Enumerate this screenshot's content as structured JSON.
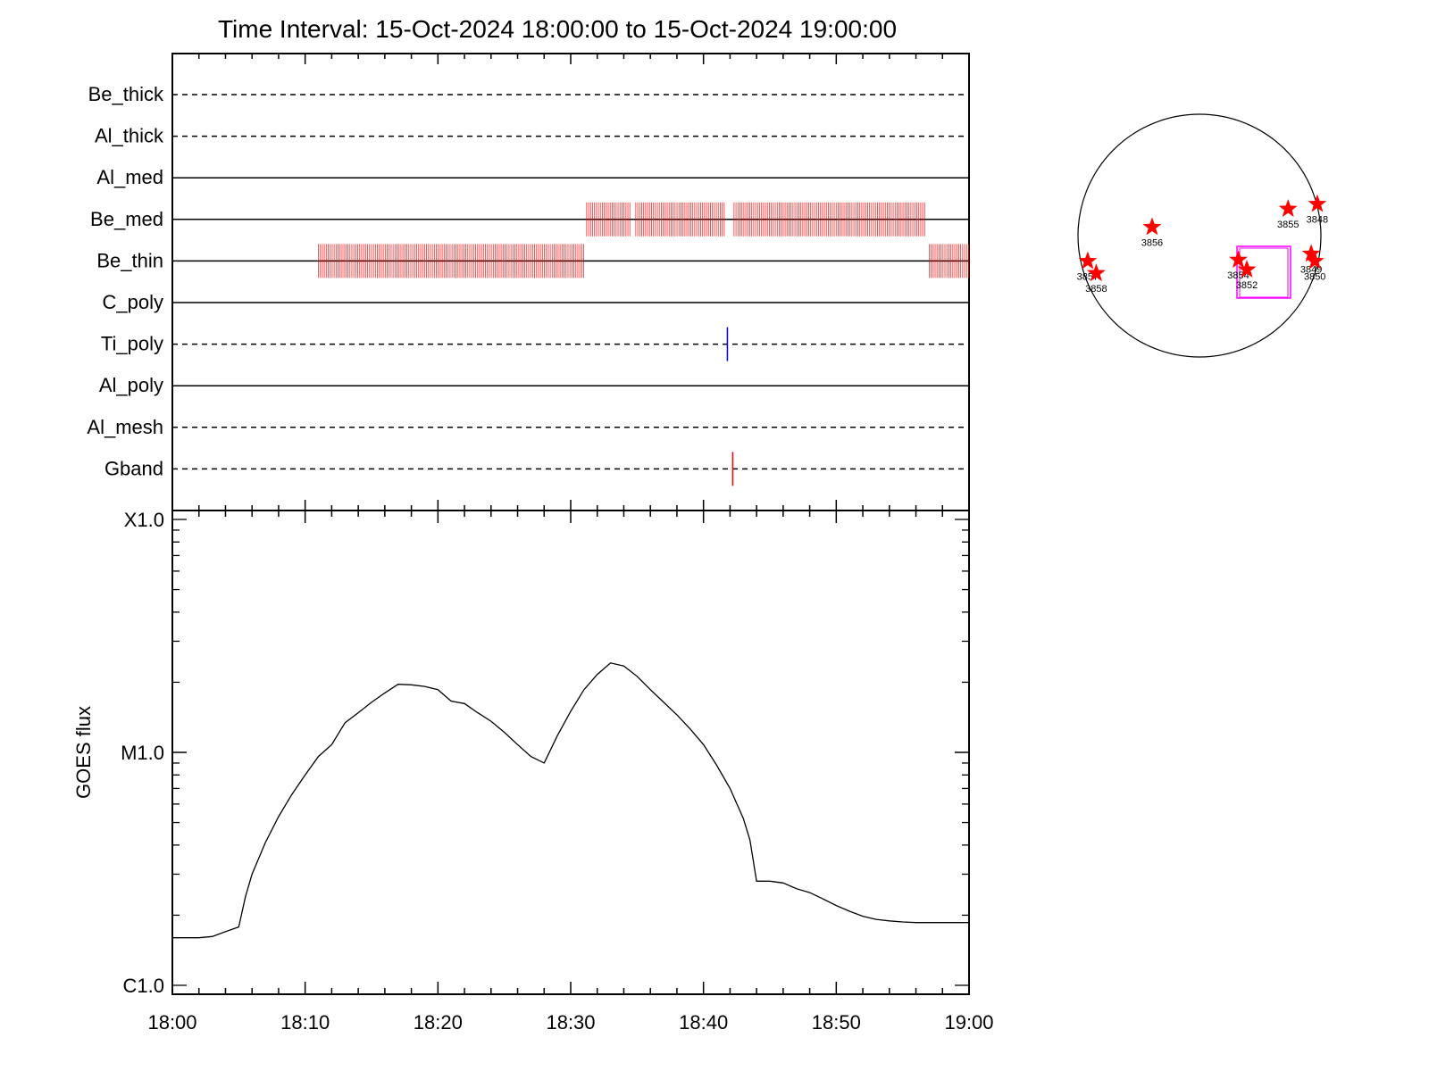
{
  "title": "Time Interval: 15-Oct-2024 18:00:00 to 15-Oct-2024 19:00:00",
  "chart_data": [
    {
      "type": "line",
      "panel": "filter-timeline",
      "xlim": [
        "18:00",
        "19:00"
      ],
      "channels": [
        {
          "name": "Be_thick",
          "line_style": "dashed"
        },
        {
          "name": "Al_thick",
          "line_style": "dashed"
        },
        {
          "name": "Al_med",
          "line_style": "solid"
        },
        {
          "name": "Be_med",
          "line_style": "solid"
        },
        {
          "name": "Be_thin",
          "line_style": "solid"
        },
        {
          "name": "C_poly",
          "line_style": "solid"
        },
        {
          "name": "Ti_poly",
          "line_style": "dashed"
        },
        {
          "name": "Al_poly",
          "line_style": "solid"
        },
        {
          "name": "Al_mesh",
          "line_style": "dashed"
        },
        {
          "name": "Gband",
          "line_style": "dashed"
        }
      ],
      "exposures": [
        {
          "channel": "Be_med",
          "color": "#ff0000",
          "intervals": [
            [
              31.2,
              34.5
            ],
            [
              34.9,
              41.7
            ],
            [
              42.3,
              56.8
            ]
          ]
        },
        {
          "channel": "Be_thin",
          "color": "#ff0000",
          "intervals": [
            [
              11.0,
              31.1
            ],
            [
              57.0,
              60.0
            ]
          ]
        },
        {
          "channel": "Ti_poly",
          "color": "#0000ff",
          "times": [
            41.8
          ]
        },
        {
          "channel": "Gband",
          "color": "#ff0000",
          "times": [
            42.2
          ]
        }
      ]
    },
    {
      "type": "line",
      "panel": "goes-flux",
      "ylabel": "GOES flux",
      "yscale": "log",
      "ylim": [
        1e-06,
        0.0001
      ],
      "yticks": [
        {
          "label": "C1.0",
          "value": 1e-06
        },
        {
          "label": "M1.0",
          "value": 1e-05
        },
        {
          "label": "X1.0",
          "value": 0.0001
        }
      ],
      "xticks": [
        "18:00",
        "18:10",
        "18:20",
        "18:30",
        "18:40",
        "18:50",
        "19:00"
      ],
      "xlim_minutes": [
        0,
        60
      ],
      "series": [
        {
          "color": "#000000",
          "x": [
            0,
            1,
            2,
            3,
            4,
            5,
            5.5,
            6,
            7,
            8,
            9,
            10,
            11,
            12,
            13,
            14,
            15,
            16,
            17,
            18,
            19,
            20,
            21,
            22,
            23,
            24,
            25,
            26,
            27,
            28,
            29,
            30,
            31,
            32,
            33,
            34,
            35,
            36,
            37,
            38,
            39,
            40,
            41,
            42,
            43,
            43.5,
            44,
            45,
            46,
            47,
            48,
            49,
            50,
            51,
            52,
            53,
            54,
            55,
            56,
            57,
            58,
            59,
            60
          ],
          "y": [
            1.6e-06,
            1.6e-06,
            1.6e-06,
            1.62e-06,
            1.7e-06,
            1.78e-06,
            2.4e-06,
            3e-06,
            4.1e-06,
            5.3e-06,
            6.6e-06,
            8e-06,
            9.6e-06,
            1.08e-05,
            1.34e-05,
            1.48e-05,
            1.64e-05,
            1.8e-05,
            1.96e-05,
            1.95e-05,
            1.92e-05,
            1.86e-05,
            1.66e-05,
            1.62e-05,
            1.48e-05,
            1.36e-05,
            1.22e-05,
            1.08e-05,
            9.6e-06,
            9e-06,
            1.18e-05,
            1.5e-05,
            1.86e-05,
            2.16e-05,
            2.42e-05,
            2.35e-05,
            2.12e-05,
            1.86e-05,
            1.64e-05,
            1.45e-05,
            1.26e-05,
            1.08e-05,
            8.8e-06,
            7e-06,
            5.2e-06,
            4.2e-06,
            2.8e-06,
            2.8e-06,
            2.75e-06,
            2.6e-06,
            2.5e-06,
            2.35e-06,
            2.2e-06,
            2.08e-06,
            1.98e-06,
            1.92e-06,
            1.89e-06,
            1.87e-06,
            1.86e-06,
            1.86e-06,
            1.86e-06,
            1.86e-06,
            1.86e-06
          ]
        }
      ]
    },
    {
      "type": "scatter",
      "panel": "solar-disk-map",
      "box_color": "#ff00ff",
      "marker_color": "#ff0000",
      "regions": [
        {
          "label": "3848",
          "x": 0.97,
          "y": 0.26
        },
        {
          "label": "3855",
          "x": 0.73,
          "y": 0.22
        },
        {
          "label": "3856",
          "x": -0.39,
          "y": 0.07
        },
        {
          "label": "3857",
          "x": -0.92,
          "y": -0.21
        },
        {
          "label": "3858",
          "x": -0.85,
          "y": -0.31
        },
        {
          "label": "3854",
          "x": 0.32,
          "y": -0.2
        },
        {
          "label": "3852",
          "x": 0.39,
          "y": -0.28
        },
        {
          "label": "3849",
          "x": 0.92,
          "y": -0.15
        },
        {
          "label": "3850",
          "x": 0.95,
          "y": -0.21
        }
      ]
    }
  ]
}
